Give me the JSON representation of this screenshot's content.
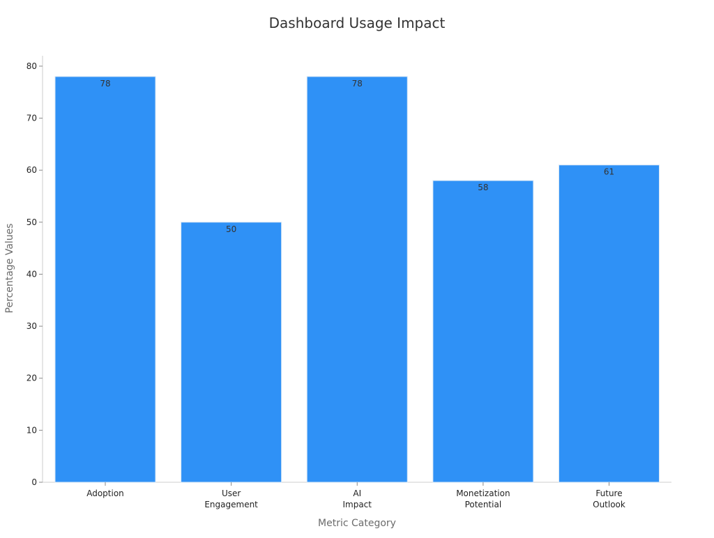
{
  "chart_data": {
    "type": "bar",
    "title": "Dashboard Usage Impact",
    "xlabel": "Metric Category",
    "ylabel": "Percentage Values",
    "categories": [
      [
        "Adoption"
      ],
      [
        "User",
        "Engagement"
      ],
      [
        "AI",
        "Impact"
      ],
      [
        "Monetization",
        "Potential"
      ],
      [
        "Future",
        "Outlook"
      ]
    ],
    "values": [
      78,
      50,
      78,
      58,
      61
    ],
    "ylim": [
      0,
      82
    ],
    "yticks": [
      0,
      10,
      20,
      30,
      40,
      50,
      60,
      70,
      80
    ],
    "grid": false,
    "legend": "none",
    "colors": {
      "bar": "#2f91f6",
      "bar_edge": "#d6e6f5",
      "axis": "#cccccc"
    }
  }
}
